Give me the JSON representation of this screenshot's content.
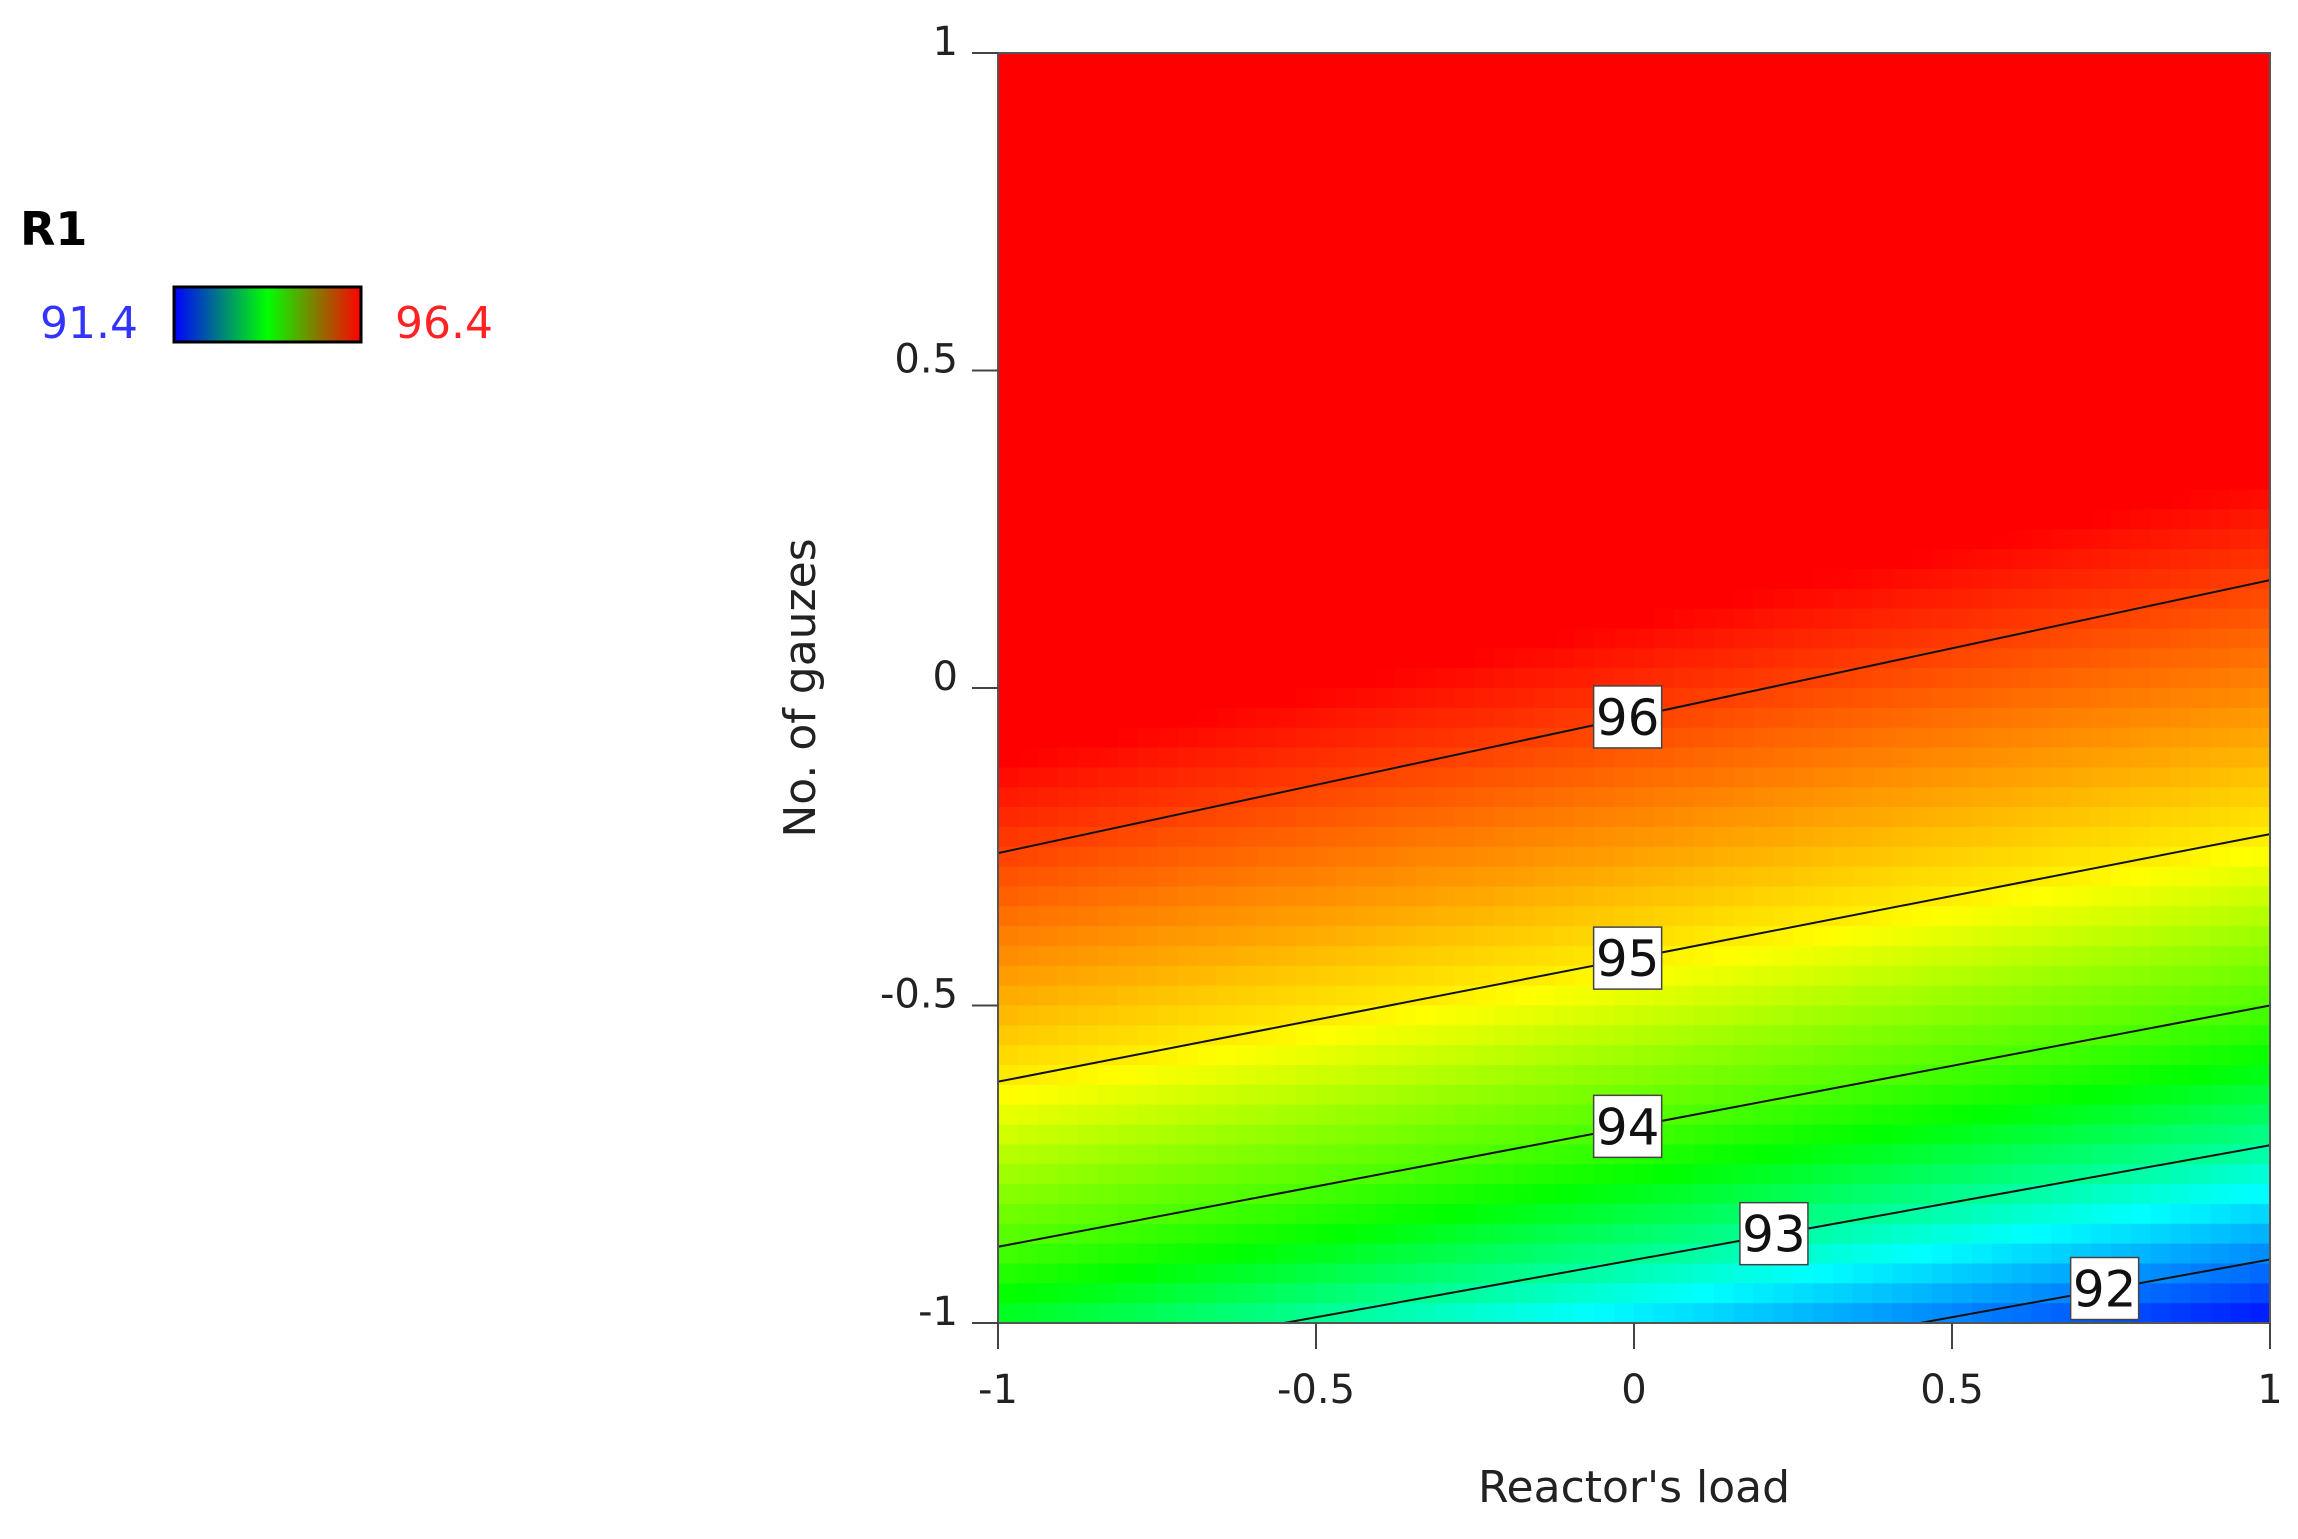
{
  "chart_data": {
    "type": "heatmap",
    "subtype": "contour",
    "xlabel": "Reactor's load",
    "ylabel": "No. of gauzes",
    "xlim": [
      -1,
      1
    ],
    "ylim": [
      -1,
      1
    ],
    "xticks": [
      "-1",
      "-0.5",
      "0",
      "0.5",
      "1"
    ],
    "yticks": [
      "1",
      "0.5",
      "0",
      "-0.5",
      "-1"
    ],
    "legend": {
      "title": "R1",
      "min_label": "91.4",
      "max_label": "96.4",
      "min": 91.4,
      "max": 96.4,
      "min_color": "#3333ff",
      "max_color": "#ff2222",
      "gradient": [
        "#0000ff",
        "#00ff00",
        "#ff0000"
      ]
    },
    "contours": [
      {
        "level": 96,
        "label": "96",
        "line": [
          [
            -1,
            -0.26
          ],
          [
            1,
            0.17
          ]
        ],
        "label_x": -0.01
      },
      {
        "level": 95,
        "label": "95",
        "line": [
          [
            -1,
            -0.62
          ],
          [
            1,
            -0.23
          ]
        ],
        "label_x": -0.01
      },
      {
        "level": 94,
        "label": "94",
        "line": [
          [
            -1,
            -0.88
          ],
          [
            1,
            -0.5
          ]
        ],
        "label_x": -0.01
      },
      {
        "level": 93,
        "label": "93",
        "line": [
          [
            -0.55,
            -1
          ],
          [
            1,
            -0.72
          ]
        ],
        "label_x": 0.22
      },
      {
        "level": 92,
        "label": "92",
        "line": [
          [
            0.45,
            -1
          ],
          [
            1,
            -0.9
          ]
        ],
        "label_x": 0.74
      }
    ],
    "colormap": [
      {
        "value": 91.4,
        "color": "#0000ff"
      },
      {
        "value": 92.6,
        "color": "#00ffff"
      },
      {
        "value": 93.6,
        "color": "#00ff00"
      },
      {
        "value": 94.4,
        "color": "#99ff00"
      },
      {
        "value": 94.9,
        "color": "#ffff00"
      },
      {
        "value": 95.4,
        "color": "#ffa500"
      },
      {
        "value": 96.0,
        "color": "#ff4000"
      },
      {
        "value": 96.4,
        "color": "#ff0000"
      }
    ]
  }
}
